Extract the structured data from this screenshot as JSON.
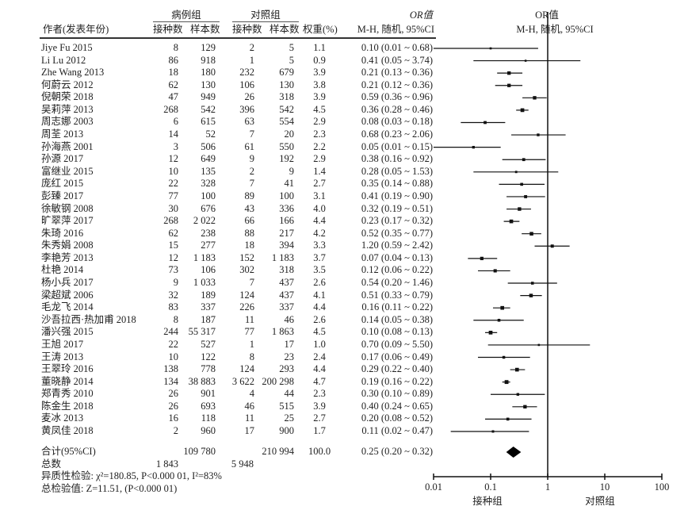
{
  "headers": {
    "author": "作者(发表年份)",
    "case_group": "病例组",
    "control_group": "对照组",
    "vaccinated": "接种数",
    "sample": "样本数",
    "vaccinated2": "接种数",
    "sample2": "样本数",
    "weight": "权重(%)",
    "or_title": "OR值",
    "or_sub": "M-H, 随机, 95%CI",
    "plot_title": "OR值",
    "plot_sub": "M-H, 随机, 95%CI"
  },
  "rows": [
    [
      "Jiye Fu 2015",
      "8",
      "129",
      "2",
      "5",
      "1.1",
      "0.10 (0.01 ~ 0.68)",
      0.1,
      0.01,
      0.68
    ],
    [
      "Li Lu 2012",
      "86",
      "918",
      "1",
      "5",
      "0.9",
      "0.41 (0.05 ~ 3.74)",
      0.41,
      0.05,
      3.74
    ],
    [
      "Zhe Wang 2013",
      "18",
      "180",
      "232",
      "679",
      "3.9",
      "0.21 (0.13 ~ 0.36)",
      0.21,
      0.13,
      0.36
    ],
    [
      "何蔚云 2012",
      "62",
      "130",
      "106",
      "130",
      "3.8",
      "0.21 (0.12 ~ 0.36)",
      0.21,
      0.12,
      0.36
    ],
    [
      "倪朝荣 2018",
      "47",
      "949",
      "26",
      "318",
      "3.9",
      "0.59 (0.36 ~ 0.96)",
      0.59,
      0.36,
      0.96
    ],
    [
      "吴莉萍 2013",
      "268",
      "542",
      "396",
      "542",
      "4.5",
      "0.36 (0.28 ~ 0.46)",
      0.36,
      0.28,
      0.46
    ],
    [
      "周志娜 2003",
      "6",
      "615",
      "63",
      "554",
      "2.9",
      "0.08 (0.03 ~ 0.18)",
      0.08,
      0.03,
      0.18
    ],
    [
      "周荃 2013",
      "14",
      "52",
      "7",
      "20",
      "2.3",
      "0.68 (0.23 ~ 2.06)",
      0.68,
      0.23,
      2.06
    ],
    [
      "孙海燕 2001",
      "3",
      "506",
      "61",
      "550",
      "2.2",
      "0.05 (0.01 ~ 0.15)",
      0.05,
      0.01,
      0.15
    ],
    [
      "孙源 2017",
      "12",
      "649",
      "9",
      "192",
      "2.9",
      "0.38 (0.16 ~ 0.92)",
      0.38,
      0.16,
      0.92
    ],
    [
      "富继业 2015",
      "10",
      "135",
      "2",
      "9",
      "1.4",
      "0.28 (0.05 ~ 1.53)",
      0.28,
      0.05,
      1.53
    ],
    [
      "庞红 2015",
      "22",
      "328",
      "7",
      "41",
      "2.7",
      "0.35 (0.14 ~ 0.88)",
      0.35,
      0.14,
      0.88
    ],
    [
      "彭臻 2017",
      "77",
      "100",
      "89",
      "100",
      "3.1",
      "0.41 (0.19 ~ 0.90)",
      0.41,
      0.19,
      0.9
    ],
    [
      "徐敏钢 2008",
      "30",
      "676",
      "43",
      "336",
      "4.0",
      "0.32 (0.19 ~ 0.51)",
      0.32,
      0.19,
      0.51
    ],
    [
      "旷翠萍 2017",
      "268",
      "2 022",
      "66",
      "166",
      "4.4",
      "0.23 (0.17 ~ 0.32)",
      0.23,
      0.17,
      0.32
    ],
    [
      "朱琦 2016",
      "62",
      "238",
      "88",
      "217",
      "4.2",
      "0.52 (0.35 ~ 0.77)",
      0.52,
      0.35,
      0.77
    ],
    [
      "朱秀娟 2008",
      "15",
      "277",
      "18",
      "394",
      "3.3",
      "1.20 (0.59 ~ 2.42)",
      1.2,
      0.59,
      2.42
    ],
    [
      "李艳芳 2013",
      "12",
      "1 183",
      "152",
      "1 183",
      "3.7",
      "0.07 (0.04 ~ 0.13)",
      0.07,
      0.04,
      0.13
    ],
    [
      "杜艳 2014",
      "73",
      "106",
      "302",
      "318",
      "3.5",
      "0.12 (0.06 ~ 0.22)",
      0.12,
      0.06,
      0.22
    ],
    [
      "杨小兵 2017",
      "9",
      "1 033",
      "7",
      "437",
      "2.6",
      "0.54 (0.20 ~ 1.46)",
      0.54,
      0.2,
      1.46
    ],
    [
      "梁超斌 2006",
      "32",
      "189",
      "124",
      "437",
      "4.1",
      "0.51 (0.33 ~ 0.79)",
      0.51,
      0.33,
      0.79
    ],
    [
      "毛龙飞 2014",
      "83",
      "337",
      "226",
      "337",
      "4.4",
      "0.16 (0.11 ~ 0.22)",
      0.16,
      0.11,
      0.22
    ],
    [
      "沙吾拉西·热加甫 2018",
      "8",
      "187",
      "11",
      "46",
      "2.6",
      "0.14 (0.05 ~ 0.38)",
      0.14,
      0.05,
      0.38
    ],
    [
      "潘兴强 2015",
      "244",
      "55 317",
      "77",
      "1 863",
      "4.5",
      "0.10 (0.08 ~ 0.13)",
      0.1,
      0.08,
      0.13
    ],
    [
      "王旭 2017",
      "22",
      "527",
      "1",
      "17",
      "1.0",
      "0.70 (0.09 ~ 5.50)",
      0.7,
      0.09,
      5.5
    ],
    [
      "王涛 2013",
      "10",
      "122",
      "8",
      "23",
      "2.4",
      "0.17 (0.06 ~ 0.49)",
      0.17,
      0.06,
      0.49
    ],
    [
      "王翠玲 2016",
      "138",
      "778",
      "124",
      "293",
      "4.4",
      "0.29 (0.22 ~ 0.40)",
      0.29,
      0.22,
      0.4
    ],
    [
      "董晓静 2014",
      "134",
      "38 883",
      "3 622",
      "200 298",
      "4.7",
      "0.19 (0.16 ~ 0.22)",
      0.19,
      0.16,
      0.22
    ],
    [
      "郑青秀 2010",
      "26",
      "901",
      "4",
      "44",
      "2.3",
      "0.30 (0.10 ~ 0.89)",
      0.3,
      0.1,
      0.89
    ],
    [
      "陈金生 2018",
      "26",
      "693",
      "46",
      "515",
      "3.9",
      "0.40 (0.24 ~ 0.65)",
      0.4,
      0.24,
      0.65
    ],
    [
      "麦冰 2013",
      "16",
      "118",
      "11",
      "25",
      "2.7",
      "0.20 (0.08 ~ 0.52)",
      0.2,
      0.08,
      0.52
    ],
    [
      "黄凤佳 2018",
      "2",
      "960",
      "17",
      "900",
      "1.7",
      "0.11 (0.02 ~ 0.47)",
      0.11,
      0.02,
      0.47
    ]
  ],
  "total": {
    "label": "合计(95%CI)",
    "case_n": "109 780",
    "control_n": "210 994",
    "weight": "100.0",
    "ci": "0.25 (0.20 ~ 0.32)",
    "or": 0.25,
    "lo": 0.2,
    "hi": 0.32
  },
  "events": {
    "label": "总数",
    "case": "1 843",
    "control": "5 948"
  },
  "heterogeneity": "异质性检验: χ²=180.85, P<0.000 01, I²=83%",
  "overall_test": "总检验值: Z=11.51, (P<0.000 01)",
  "chart_data": {
    "type": "forest",
    "x_scale": "log",
    "xlim": [
      0.01,
      100
    ],
    "x_ticks": [
      "0.01",
      "0.1",
      "1",
      "10",
      "100"
    ],
    "reference_line": 1,
    "x_left_label": "接种组",
    "x_right_label": "对照组"
  }
}
